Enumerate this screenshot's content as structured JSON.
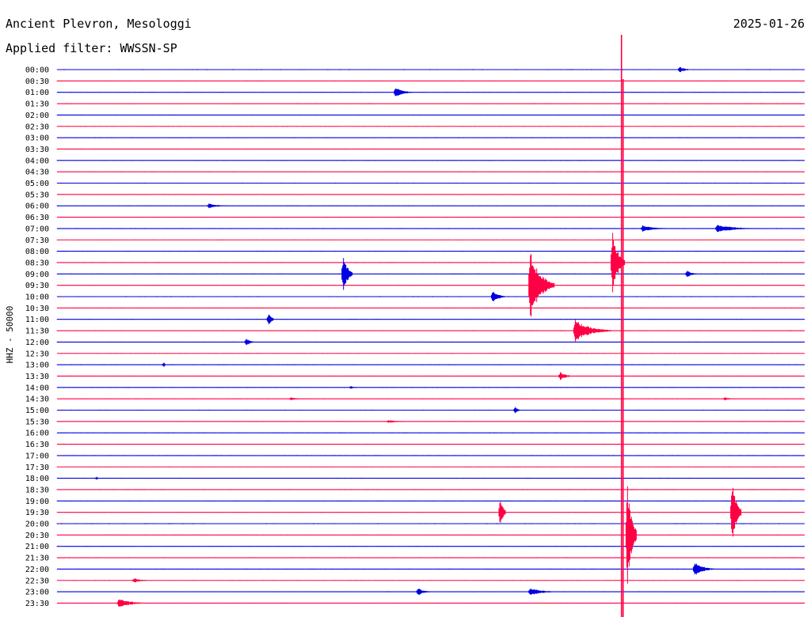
{
  "header": {
    "station": "Ancient Plevron, Mesologgi",
    "date": "2025-01-26",
    "filter": "Applied filter: WWSSN-SP"
  },
  "chart_data": {
    "type": "line",
    "title": "Ancient Plevron, Mesologgi",
    "ylabel": "HHZ - 50000",
    "row_labels": [
      "00:00",
      "00:30",
      "01:00",
      "01:30",
      "02:00",
      "02:30",
      "03:00",
      "03:30",
      "04:00",
      "04:30",
      "05:00",
      "05:30",
      "06:00",
      "06:30",
      "07:00",
      "07:30",
      "08:00",
      "08:30",
      "09:00",
      "09:30",
      "10:00",
      "10:30",
      "11:00",
      "11:30",
      "12:00",
      "12:30",
      "13:00",
      "13:30",
      "14:00",
      "14:30",
      "15:00",
      "15:30",
      "16:00",
      "16:30",
      "17:00",
      "17:30",
      "18:00",
      "18:30",
      "19:00",
      "19:30",
      "20:00",
      "20:30",
      "21:00",
      "21:30",
      "22:00",
      "22:30",
      "23:00",
      "23:30"
    ],
    "colors": {
      "even": "#0000e0",
      "odd": "#ff0044"
    },
    "events": [
      {
        "row": 0,
        "t": 0.83,
        "amp": 4,
        "dur": 0.02
      },
      {
        "row": 2,
        "t": 0.45,
        "amp": 7,
        "dur": 0.025
      },
      {
        "row": 12,
        "t": 0.2,
        "amp": 3,
        "dur": 0.03
      },
      {
        "row": 14,
        "t": 0.78,
        "amp": 4,
        "dur": 0.04
      },
      {
        "row": 14,
        "t": 0.88,
        "amp": 5,
        "dur": 0.06
      },
      {
        "row": 17,
        "t": 0.74,
        "amp": 38,
        "dur": 0.02
      },
      {
        "row": 18,
        "t": 0.38,
        "amp": 24,
        "dur": 0.015
      },
      {
        "row": 18,
        "t": 0.84,
        "amp": 5,
        "dur": 0.015
      },
      {
        "row": 19,
        "t": 0.63,
        "amp": 44,
        "dur": 0.035
      },
      {
        "row": 20,
        "t": 0.58,
        "amp": 8,
        "dur": 0.02
      },
      {
        "row": 22,
        "t": 0.28,
        "amp": 9,
        "dur": 0.01
      },
      {
        "row": 23,
        "t": 0.69,
        "amp": 14,
        "dur": 0.05
      },
      {
        "row": 24,
        "t": 0.25,
        "amp": 5,
        "dur": 0.015
      },
      {
        "row": 26,
        "t": 0.14,
        "amp": 3,
        "dur": 0.005
      },
      {
        "row": 27,
        "t": 0.67,
        "amp": 5,
        "dur": 0.02
      },
      {
        "row": 28,
        "t": 0.39,
        "amp": 2,
        "dur": 0.01
      },
      {
        "row": 29,
        "t": 0.31,
        "amp": 2,
        "dur": 0.02
      },
      {
        "row": 29,
        "t": 0.89,
        "amp": 2,
        "dur": 0.02
      },
      {
        "row": 30,
        "t": 0.61,
        "amp": 4,
        "dur": 0.01
      },
      {
        "row": 31,
        "t": 0.44,
        "amp": 2,
        "dur": 0.03
      },
      {
        "row": 36,
        "t": 0.05,
        "amp": 2,
        "dur": 0.005
      },
      {
        "row": 39,
        "t": 0.59,
        "amp": 18,
        "dur": 0.01
      },
      {
        "row": 39,
        "t": 0.9,
        "amp": 40,
        "dur": 0.015
      },
      {
        "row": 41,
        "t": 0.76,
        "amp": 64,
        "dur": 0.015
      },
      {
        "row": 44,
        "t": 0.85,
        "amp": 9,
        "dur": 0.03
      },
      {
        "row": 45,
        "t": 0.1,
        "amp": 3,
        "dur": 0.025
      },
      {
        "row": 46,
        "t": 0.48,
        "amp": 5,
        "dur": 0.02
      },
      {
        "row": 46,
        "t": 0.63,
        "amp": 5,
        "dur": 0.04
      },
      {
        "row": 47,
        "t": 0.08,
        "amp": 6,
        "dur": 0.04
      }
    ],
    "spike_fraction": 0.755
  }
}
